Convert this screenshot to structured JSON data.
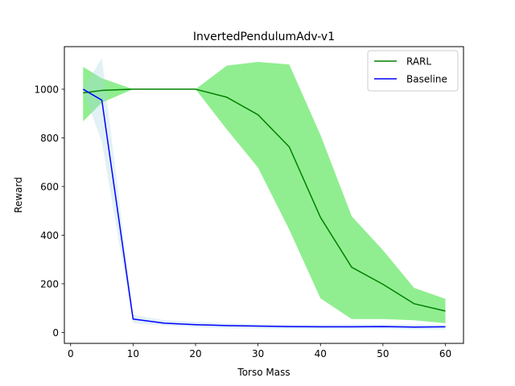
{
  "chart_data": {
    "type": "line",
    "title": "InvertedPendulumAdv-v1",
    "xlabel": "Torso Mass",
    "ylabel": "Reward",
    "xlim": [
      -1.0,
      62.9
    ],
    "ylim": [
      -45,
      1175
    ],
    "xticks": [
      0,
      10,
      20,
      30,
      40,
      50,
      60
    ],
    "yticks": [
      0,
      200,
      400,
      600,
      800,
      1000
    ],
    "grid": false,
    "legend_position": "top-right",
    "series": [
      {
        "name": "RARL",
        "color": "#008000",
        "band_color": "#90ee90",
        "band_opacity": 1.0,
        "x": [
          2,
          5,
          10,
          15,
          20,
          25,
          30,
          35,
          40,
          45,
          50,
          55,
          60
        ],
        "y": [
          985,
          995,
          1000,
          1000,
          1000,
          967,
          895,
          763,
          473,
          268,
          198,
          118,
          88
        ],
        "upper": [
          1092,
          1045,
          1000,
          1000,
          1000,
          1097,
          1112,
          1102,
          812,
          478,
          338,
          183,
          138
        ],
        "lower": [
          868,
          945,
          1000,
          1000,
          1000,
          835,
          678,
          423,
          140,
          55,
          55,
          50,
          38
        ]
      },
      {
        "name": "Baseline",
        "color": "#0000ff",
        "band_color": "#add8e6",
        "band_opacity": 0.35,
        "x": [
          2,
          5,
          10,
          15,
          20,
          25,
          30,
          35,
          40,
          45,
          50,
          55,
          60
        ],
        "y": [
          1000,
          955,
          55,
          38,
          32,
          28,
          26,
          24,
          23,
          23,
          24,
          22,
          23
        ],
        "upper": [
          1002,
          1128,
          72,
          50,
          44,
          38,
          34,
          32,
          32,
          33,
          33,
          32,
          32
        ],
        "lower": [
          998,
          782,
          38,
          28,
          22,
          18,
          16,
          14,
          14,
          14,
          14,
          12,
          12
        ]
      }
    ]
  }
}
